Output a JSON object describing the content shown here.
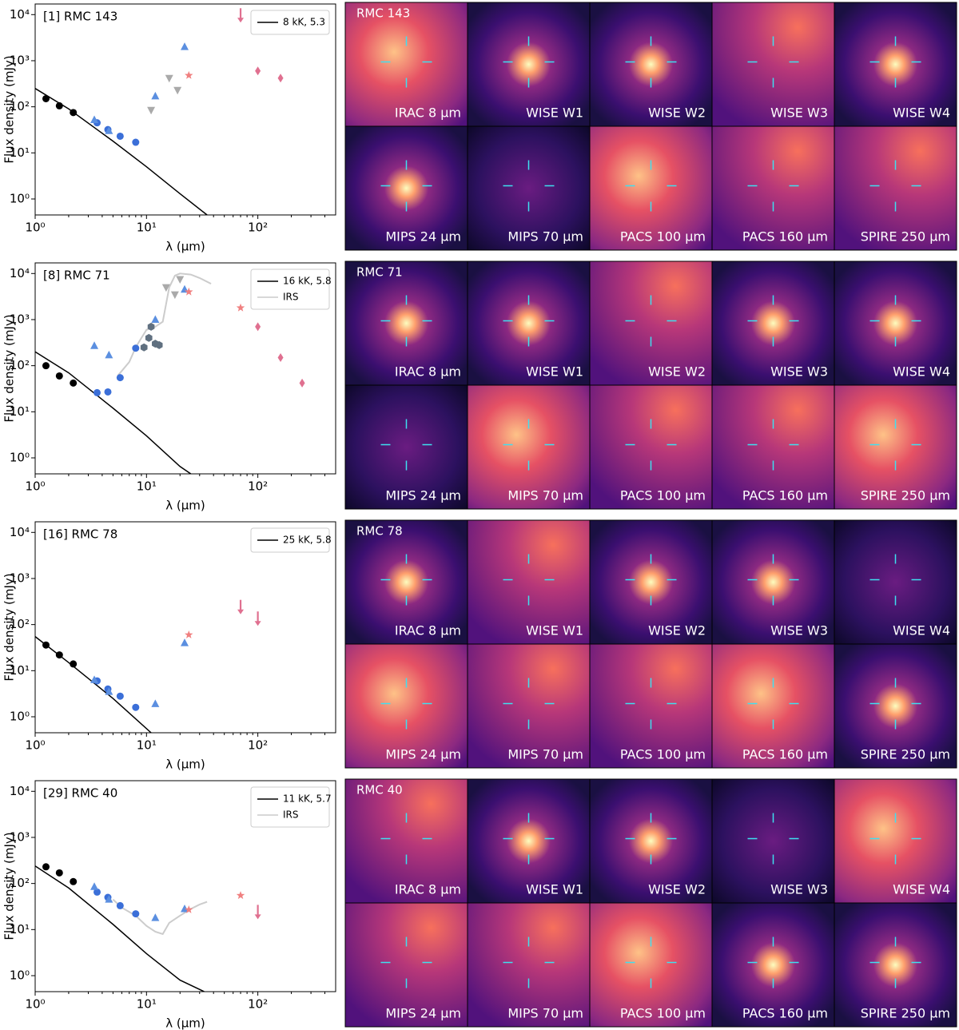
{
  "chart_data": [
    {
      "type": "scatter",
      "title": "[1] RMC 143",
      "xlabel": "λ (µm)",
      "ylabel": "Flux density (mJy)",
      "xscale": "log",
      "yscale": "log",
      "legend": "upper right",
      "xlim": [
        1,
        500
      ],
      "ylim": [
        0.45,
        17000
      ],
      "xticks": [
        {
          "value": 1,
          "label": "10⁰"
        },
        {
          "value": 10,
          "label": "10¹"
        },
        {
          "value": 100,
          "label": "10²"
        }
      ],
      "yticks": [
        {
          "value": 1,
          "label": "10⁰"
        },
        {
          "value": 10,
          "label": "10¹"
        },
        {
          "value": 100,
          "label": "10²"
        },
        {
          "value": 1000,
          "label": "10³"
        },
        {
          "value": 10000,
          "label": "10⁴"
        }
      ],
      "series": [
        {
          "name": "8 kK, 5.3",
          "marker": "line",
          "color": "#000000",
          "x": [
            1,
            2,
            5,
            10,
            20,
            35
          ],
          "values": [
            250,
            90,
            18,
            5,
            1.3,
            0.45
          ]
        },
        {
          "marker": "circle",
          "color": "#000000",
          "x": [
            1.25,
            1.65,
            2.2
          ],
          "values": [
            150,
            105,
            75
          ]
        },
        {
          "marker": "circle",
          "color": "#3b6fd8",
          "x": [
            3.6,
            4.5,
            5.8,
            8
          ],
          "values": [
            45,
            32,
            23,
            17
          ]
        },
        {
          "marker": "triangle-up",
          "color": "#5b8fe0",
          "x": [
            3.4,
            4.6,
            12,
            22
          ],
          "values": [
            52,
            30,
            170,
            2000
          ]
        },
        {
          "marker": "triangle-down",
          "color": "#aaaaaa",
          "x": [
            11,
            16,
            19
          ],
          "values": [
            85,
            420,
            230
          ]
        },
        {
          "marker": "star",
          "color": "#f08080",
          "x": [
            24
          ],
          "values": [
            480
          ]
        },
        {
          "marker": "diamond",
          "color": "#e07090",
          "x": [
            100,
            160
          ],
          "values": [
            600,
            420
          ]
        },
        {
          "marker": "arrow",
          "color": "#e07090",
          "x": [
            70
          ],
          "values": [
            10000
          ]
        }
      ]
    },
    {
      "type": "scatter",
      "title": "[8] RMC 71",
      "xlabel": "λ (µm)",
      "ylabel": "Flux density (mJy)",
      "xscale": "log",
      "yscale": "log",
      "legend": "upper right",
      "xlim": [
        1,
        500
      ],
      "ylim": [
        0.45,
        17000
      ],
      "xticks": [
        {
          "value": 1,
          "label": "10⁰"
        },
        {
          "value": 10,
          "label": "10¹"
        },
        {
          "value": 100,
          "label": "10²"
        }
      ],
      "yticks": [
        {
          "value": 1,
          "label": "10⁰"
        },
        {
          "value": 10,
          "label": "10¹"
        },
        {
          "value": 100,
          "label": "10²"
        },
        {
          "value": 1000,
          "label": "10³"
        },
        {
          "value": 10000,
          "label": "10⁴"
        }
      ],
      "series": [
        {
          "name": "16 kK, 5.8",
          "marker": "line",
          "color": "#000000",
          "x": [
            1,
            2,
            5,
            10,
            20,
            25
          ],
          "values": [
            200,
            70,
            12,
            3,
            0.65,
            0.45
          ]
        },
        {
          "name": "IRS",
          "marker": "line",
          "color": "#cccccc",
          "x": [
            5.5,
            7,
            8,
            9,
            10,
            12,
            14,
            16,
            18,
            20,
            25,
            30,
            38
          ],
          "values": [
            60,
            120,
            250,
            400,
            600,
            700,
            900,
            5000,
            9000,
            10000,
            9500,
            8000,
            6000
          ]
        },
        {
          "marker": "circle",
          "color": "#000000",
          "x": [
            1.25,
            1.65,
            2.2
          ],
          "values": [
            100,
            60,
            42
          ]
        },
        {
          "marker": "circle",
          "color": "#3b6fd8",
          "x": [
            3.6,
            4.5,
            5.8,
            8
          ],
          "values": [
            26,
            27,
            55,
            240
          ]
        },
        {
          "marker": "triangle-up",
          "color": "#5b8fe0",
          "x": [
            3.4,
            4.6,
            12,
            22
          ],
          "values": [
            270,
            170,
            1000,
            4500
          ]
        },
        {
          "marker": "hexagon",
          "color": "#607080",
          "x": [
            9.5,
            10.5,
            11,
            12,
            13
          ],
          "values": [
            250,
            400,
            700,
            300,
            280
          ]
        },
        {
          "marker": "triangle-down",
          "color": "#aaaaaa",
          "x": [
            15,
            18,
            20
          ],
          "values": [
            5000,
            3500,
            7500
          ]
        },
        {
          "marker": "star",
          "color": "#f08080",
          "x": [
            24,
            70
          ],
          "values": [
            4000,
            1800
          ]
        },
        {
          "marker": "diamond",
          "color": "#e07090",
          "x": [
            100,
            160,
            250
          ],
          "values": [
            700,
            150,
            42
          ]
        }
      ]
    },
    {
      "type": "scatter",
      "title": "[16] RMC 78",
      "xlabel": "λ (µm)",
      "ylabel": "Flux density (mJy)",
      "xscale": "log",
      "yscale": "log",
      "legend": "upper right",
      "xlim": [
        1,
        500
      ],
      "ylim": [
        0.45,
        17000
      ],
      "xticks": [
        {
          "value": 1,
          "label": "10⁰"
        },
        {
          "value": 10,
          "label": "10¹"
        },
        {
          "value": 100,
          "label": "10²"
        }
      ],
      "yticks": [
        {
          "value": 1,
          "label": "10⁰"
        },
        {
          "value": 10,
          "label": "10¹"
        },
        {
          "value": 100,
          "label": "10²"
        },
        {
          "value": 1000,
          "label": "10³"
        },
        {
          "value": 10000,
          "label": "10⁴"
        }
      ],
      "series": [
        {
          "name": "25 kK, 5.8",
          "marker": "line",
          "color": "#000000",
          "x": [
            1,
            2,
            5,
            11
          ],
          "values": [
            55,
            15,
            2.5,
            0.45
          ]
        },
        {
          "marker": "circle",
          "color": "#000000",
          "x": [
            1.25,
            1.65,
            2.2
          ],
          "values": [
            36,
            22,
            14
          ]
        },
        {
          "marker": "circle",
          "color": "#3b6fd8",
          "x": [
            3.6,
            4.5,
            5.8,
            8
          ],
          "values": [
            6,
            4,
            2.8,
            1.6
          ]
        },
        {
          "marker": "triangle-up",
          "color": "#5b8fe0",
          "x": [
            3.4,
            4.6,
            12,
            22
          ],
          "values": [
            6.3,
            3.5,
            1.9,
            40
          ]
        },
        {
          "marker": "star",
          "color": "#f08080",
          "x": [
            24
          ],
          "values": [
            60
          ]
        },
        {
          "marker": "arrow",
          "color": "#e07090",
          "x": [
            70,
            100
          ],
          "values": [
            250,
            140
          ]
        }
      ]
    },
    {
      "type": "scatter",
      "title": "[29] RMC 40",
      "xlabel": "λ (µm)",
      "ylabel": "Flux density (mJy)",
      "xscale": "log",
      "yscale": "log",
      "legend": "upper right",
      "xlim": [
        1,
        500
      ],
      "ylim": [
        0.45,
        17000
      ],
      "xticks": [
        {
          "value": 1,
          "label": "10⁰"
        },
        {
          "value": 10,
          "label": "10¹"
        },
        {
          "value": 100,
          "label": "10²"
        }
      ],
      "yticks": [
        {
          "value": 1,
          "label": "10⁰"
        },
        {
          "value": 10,
          "label": "10¹"
        },
        {
          "value": 100,
          "label": "10²"
        },
        {
          "value": 1000,
          "label": "10³"
        },
        {
          "value": 10000,
          "label": "10⁴"
        }
      ],
      "series": [
        {
          "name": "11 kK, 5.7",
          "marker": "line",
          "color": "#000000",
          "x": [
            1,
            2,
            5,
            10,
            20,
            33
          ],
          "values": [
            240,
            80,
            13,
            3,
            0.8,
            0.45
          ]
        },
        {
          "name": "IRS",
          "marker": "line",
          "color": "#cccccc",
          "x": [
            5,
            6,
            8,
            10,
            12,
            14,
            16,
            20,
            25,
            30,
            35
          ],
          "values": [
            45,
            30,
            20,
            12,
            9,
            8,
            14,
            20,
            28,
            35,
            40
          ]
        },
        {
          "marker": "circle",
          "color": "#000000",
          "x": [
            1.25,
            1.65,
            2.2
          ],
          "values": [
            230,
            170,
            110
          ]
        },
        {
          "marker": "circle",
          "color": "#3b6fd8",
          "x": [
            3.6,
            4.5,
            5.8,
            8
          ],
          "values": [
            65,
            50,
            33,
            22
          ]
        },
        {
          "marker": "triangle-up",
          "color": "#5b8fe0",
          "x": [
            3.4,
            4.6,
            12,
            22
          ],
          "values": [
            85,
            45,
            18,
            28
          ]
        },
        {
          "marker": "star",
          "color": "#f08080",
          "x": [
            24,
            70
          ],
          "values": [
            27,
            55
          ]
        },
        {
          "marker": "arrow",
          "color": "#e07090",
          "x": [
            100
          ],
          "values": [
            25
          ]
        }
      ]
    }
  ],
  "image_grids": [
    {
      "title": "RMC 143",
      "bands": [
        "IRAC 8 μm",
        "WISE W1",
        "WISE W2",
        "WISE W3",
        "WISE W4",
        "MIPS 24 μm",
        "MIPS 70 μm",
        "PACS 100 μm",
        "PACS 160 μm",
        "SPIRE 250 μm"
      ]
    },
    {
      "title": "RMC 71",
      "bands": [
        "IRAC 8 μm",
        "WISE W1",
        "WISE W2",
        "WISE W3",
        "WISE W4",
        "MIPS 24 μm",
        "MIPS 70 μm",
        "PACS 100 μm",
        "PACS 160 μm",
        "SPIRE 250 μm"
      ]
    },
    {
      "title": "RMC 78",
      "bands": [
        "IRAC 8 μm",
        "WISE W1",
        "WISE W2",
        "WISE W3",
        "WISE W4",
        "MIPS 24 μm",
        "MIPS 70 μm",
        "PACS 100 μm",
        "PACS 160 μm",
        "SPIRE 250 μm"
      ]
    },
    {
      "title": "RMC 40",
      "bands": [
        "IRAC 8 μm",
        "WISE W1",
        "WISE W2",
        "WISE W3",
        "WISE W4",
        "MIPS 24 μm",
        "MIPS 70 μm",
        "PACS 100 μm",
        "PACS 160 μm",
        "SPIRE 250 μm"
      ]
    }
  ]
}
